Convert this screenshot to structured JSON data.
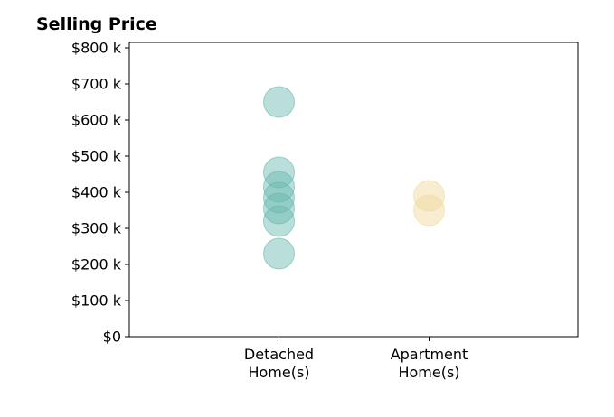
{
  "chart_data": {
    "type": "scatter",
    "title": "Selling Price",
    "xlabel": "",
    "ylabel": "",
    "ylim": [
      0,
      800000
    ],
    "yticks": [
      0,
      100000,
      200000,
      300000,
      400000,
      500000,
      600000,
      700000,
      800000
    ],
    "ytick_labels": [
      "$0",
      "$100 k",
      "$200 k",
      "$300 k",
      "$400 k",
      "$500 k",
      "$600 k",
      "$700 k",
      "$800 k"
    ],
    "categories": [
      [
        "Detached",
        "Home(s)"
      ],
      [
        "Apartment",
        "Home(s)"
      ]
    ],
    "series": [
      {
        "category_index": 0,
        "color": "#66b8ae",
        "values": [
          650000,
          455000,
          415000,
          385000,
          355000,
          320000,
          230000
        ]
      },
      {
        "category_index": 1,
        "color": "#f0d89a",
        "values": [
          390000,
          350000
        ]
      }
    ],
    "grid": false,
    "legend": "none"
  }
}
